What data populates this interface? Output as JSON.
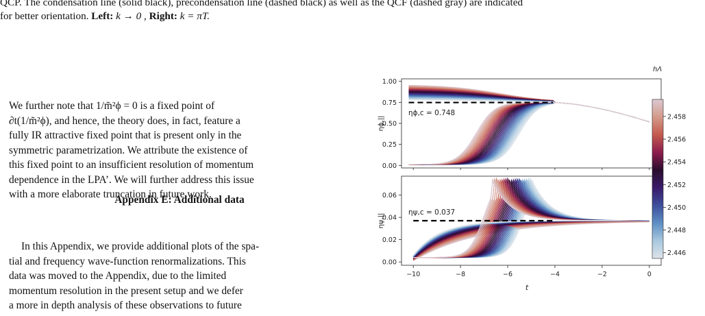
{
  "caption": {
    "line1": "QCP. The condensation line (solid black), precondensation line (dashed black) as well as the QCF (dashed gray) are indicated",
    "line2_pre": "for better orientation. ",
    "left_label": "Left:",
    "left_expr": " k → 0 , ",
    "right_label": "Right:",
    "right_expr": " k = πT."
  },
  "para1": {
    "l1": "We further note that 1/m̃²ϕ = 0 is a fixed point of",
    "l2": "∂t(1/m̃²ϕ), and hence, the theory does, in fact, feature a",
    "l3": "fully IR attractive fixed point that is present only in the",
    "l4": "symmetric parametrization. We attribute the existence of",
    "l5": "this fixed point to an insufficient resolution of momentum",
    "l6": "dependence in the LPA’. We will further address this issue",
    "l7": "with a more elaborate truncation in future work."
  },
  "heading": "Appendix E: Additional data",
  "para2": {
    "l1": "In this Appendix, we provide additional plots of the spa-",
    "l2": "tial and frequency wave-function renormalizations. This",
    "l3": "data was moved to the Appendix, due to the limited",
    "l4": "momentum resolution in the present setup and we defer",
    "l5": "a more in depth analysis of these observations to future"
  },
  "chart_data": [
    {
      "type": "line",
      "title": "",
      "xlabel": "",
      "ylabel": "ηϕ,||",
      "xlim": [
        -10.3,
        0.5
      ],
      "ylim": [
        -0.03,
        1.03
      ],
      "yticks": [
        "0.00",
        "0.25",
        "0.50",
        "0.75",
        "1.00"
      ],
      "annotation": "ηϕ,c = 0.748",
      "reference_value": 0.748,
      "reference_x_range": [
        -10,
        -4
      ],
      "series_count": 40,
      "colormap_range": [
        2.4455,
        2.4595
      ]
    },
    {
      "type": "line",
      "title": "",
      "xlabel": "t",
      "ylabel": "ηψ,||",
      "xlim": [
        -10.5,
        0.5
      ],
      "ylim": [
        -0.003,
        0.077
      ],
      "yticks": [
        "0.00",
        "0.02",
        "0.04",
        "0.06"
      ],
      "xticks": [
        "−10",
        "−8",
        "−6",
        "−4",
        "−2",
        "0"
      ],
      "annotation": "ηψ,c = 0.037",
      "reference_value": 0.037,
      "reference_x_range": [
        -10,
        -4
      ],
      "series_count": 40,
      "colormap_range": [
        2.4455,
        2.4595
      ]
    }
  ],
  "colorbar": {
    "label": "hΛ",
    "ticks": [
      "2.458",
      "2.456",
      "2.454",
      "2.452",
      "2.450",
      "2.448",
      "2.446"
    ],
    "tick_values": [
      2.458,
      2.456,
      2.454,
      2.452,
      2.45,
      2.448,
      2.446
    ],
    "colors": [
      "#dcc9d3",
      "#d49a8a",
      "#c45a4e",
      "#8c1d4e",
      "#2a0d2d",
      "#3a1a6a",
      "#3e4f9c",
      "#5e8ec4",
      "#a8c8de",
      "#dde3ea"
    ]
  }
}
